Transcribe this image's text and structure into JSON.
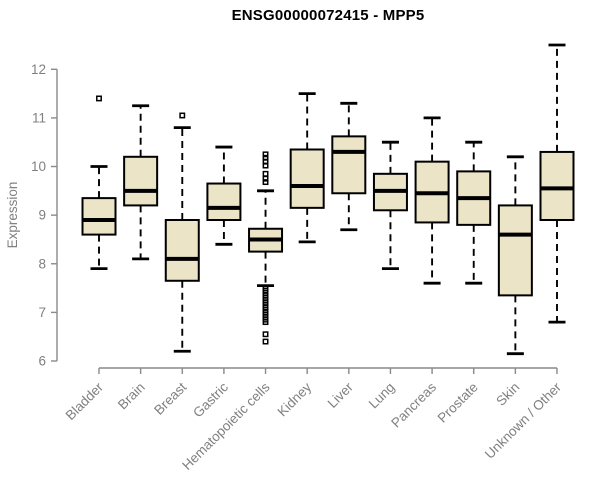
{
  "chart_data": {
    "type": "boxplot",
    "title": "ENSG00000072415 - MPP5",
    "ylabel": "Expression",
    "xlabel": "",
    "ylim": [
      6,
      12.6
    ],
    "yticks": [
      6,
      7,
      8,
      9,
      10,
      11,
      12
    ],
    "grid": false,
    "legend": false,
    "categories": [
      "Bladder",
      "Brain",
      "Breast",
      "Gastric",
      "Hematopoietic cells",
      "Kidney",
      "Liver",
      "Lung",
      "Pancreas",
      "Prostate",
      "Skin",
      "Unknown / Other"
    ],
    "series": [
      {
        "name": "Bladder",
        "whisker_low": 7.9,
        "q1": 8.6,
        "median": 8.9,
        "q3": 9.35,
        "whisker_high": 10.0,
        "outliers": [
          11.4
        ]
      },
      {
        "name": "Brain",
        "whisker_low": 8.1,
        "q1": 9.2,
        "median": 9.5,
        "q3": 10.2,
        "whisker_high": 11.25,
        "outliers": []
      },
      {
        "name": "Breast",
        "whisker_low": 6.2,
        "q1": 7.65,
        "median": 8.1,
        "q3": 8.9,
        "whisker_high": 10.8,
        "outliers": [
          11.05
        ]
      },
      {
        "name": "Gastric",
        "whisker_low": 8.4,
        "q1": 8.9,
        "median": 9.15,
        "q3": 9.65,
        "whisker_high": 10.4,
        "outliers": []
      },
      {
        "name": "Hematopoietic cells",
        "whisker_low": 7.55,
        "q1": 8.25,
        "median": 8.5,
        "q3": 8.72,
        "whisker_high": 9.5,
        "outliers": [
          10.25,
          10.18,
          10.1,
          10.02,
          9.85,
          9.75,
          9.68,
          7.5,
          7.45,
          7.4,
          7.35,
          7.3,
          7.25,
          7.2,
          7.15,
          7.1,
          7.05,
          7.0,
          6.95,
          6.9,
          6.85,
          6.8,
          6.55,
          6.4
        ]
      },
      {
        "name": "Kidney",
        "whisker_low": 8.45,
        "q1": 9.15,
        "median": 9.6,
        "q3": 10.35,
        "whisker_high": 11.5,
        "outliers": []
      },
      {
        "name": "Liver",
        "whisker_low": 8.7,
        "q1": 9.45,
        "median": 10.3,
        "q3": 10.62,
        "whisker_high": 11.3,
        "outliers": []
      },
      {
        "name": "Lung",
        "whisker_low": 7.9,
        "q1": 9.1,
        "median": 9.5,
        "q3": 9.85,
        "whisker_high": 10.5,
        "outliers": []
      },
      {
        "name": "Pancreas",
        "whisker_low": 7.6,
        "q1": 8.85,
        "median": 9.45,
        "q3": 10.1,
        "whisker_high": 11.0,
        "outliers": []
      },
      {
        "name": "Prostate",
        "whisker_low": 7.6,
        "q1": 8.8,
        "median": 9.35,
        "q3": 9.9,
        "whisker_high": 10.5,
        "outliers": []
      },
      {
        "name": "Skin",
        "whisker_low": 6.15,
        "q1": 7.35,
        "median": 8.6,
        "q3": 9.2,
        "whisker_high": 10.2,
        "outliers": []
      },
      {
        "name": "Unknown / Other",
        "whisker_low": 6.8,
        "q1": 8.9,
        "median": 9.55,
        "q3": 10.3,
        "whisker_high": 12.5,
        "outliers": []
      }
    ],
    "colors": {
      "box_fill": "#ece4c7",
      "box_border": "#000000",
      "median": "#000000",
      "whisker": "#000000",
      "outlier": "#000000",
      "axis": "#8a8a8a",
      "tick_text": "#808080",
      "title_text": "#000000",
      "background": "#ffffff"
    }
  }
}
